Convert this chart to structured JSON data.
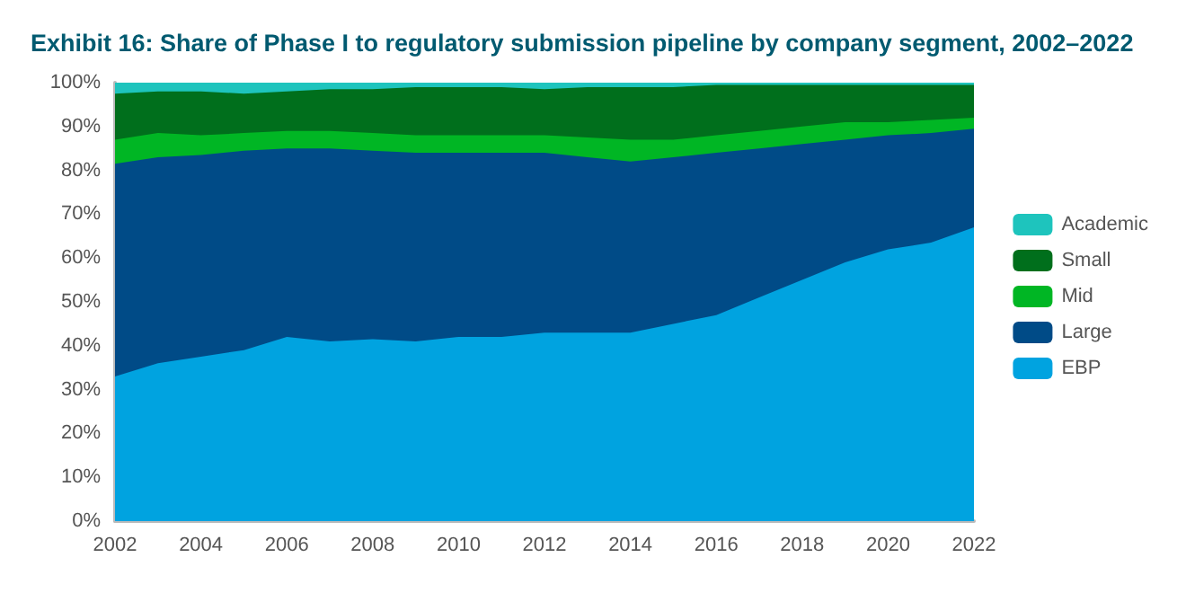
{
  "chart_data": {
    "type": "area",
    "stacked": true,
    "title": "Exhibit 16: Share of Phase I to regulatory submission pipeline by company segment, 2002–2022",
    "x": [
      2002,
      2003,
      2004,
      2005,
      2006,
      2007,
      2008,
      2009,
      2010,
      2011,
      2012,
      2013,
      2014,
      2015,
      2016,
      2017,
      2018,
      2019,
      2020,
      2021,
      2022
    ],
    "series": [
      {
        "name": "EBP",
        "color": "#00a3e0",
        "values": [
          33,
          36,
          37.5,
          39,
          42,
          41,
          41.5,
          41,
          42,
          42,
          43,
          43,
          43,
          45,
          47,
          51,
          55,
          59,
          62,
          63.5,
          67
        ]
      },
      {
        "name": "Large",
        "color": "#004b87",
        "values": [
          48.5,
          47,
          46,
          45.5,
          43,
          44,
          43,
          43,
          42,
          42,
          41,
          40,
          39,
          38,
          37,
          34,
          31,
          28,
          26,
          25,
          22.5
        ]
      },
      {
        "name": "Mid",
        "color": "#00b624",
        "values": [
          5.5,
          5.5,
          4.5,
          4,
          4,
          4,
          4,
          4,
          4,
          4,
          4,
          4.5,
          5,
          4,
          4,
          4,
          4,
          4,
          3,
          3,
          2.5
        ]
      },
      {
        "name": "Small",
        "color": "#006f1c",
        "values": [
          10.5,
          9.5,
          10,
          9,
          9,
          9.5,
          10,
          11,
          11,
          11,
          10.5,
          11.5,
          12,
          12,
          11.5,
          10.5,
          9.5,
          8.5,
          8.5,
          8,
          7.5
        ]
      },
      {
        "name": "Academic",
        "color": "#1ec4bd",
        "values": [
          2.5,
          2,
          2,
          2.5,
          2,
          1.5,
          1.5,
          1,
          1,
          1,
          1.5,
          1,
          1,
          1,
          0.5,
          0.5,
          0.5,
          0.5,
          0.5,
          0.5,
          0.5
        ]
      }
    ],
    "xlim": [
      2002,
      2022
    ],
    "xticks": [
      2002,
      2004,
      2006,
      2008,
      2010,
      2012,
      2014,
      2016,
      2018,
      2020,
      2022
    ],
    "ylim": [
      0,
      100
    ],
    "yticks": [
      {
        "value": 0,
        "label": "0%"
      },
      {
        "value": 10,
        "label": "10%"
      },
      {
        "value": 20,
        "label": "20%"
      },
      {
        "value": 30,
        "label": "30%"
      },
      {
        "value": 40,
        "label": "40%"
      },
      {
        "value": 50,
        "label": "50%"
      },
      {
        "value": 60,
        "label": "60%"
      },
      {
        "value": 70,
        "label": "70%"
      },
      {
        "value": 80,
        "label": "80%"
      },
      {
        "value": 90,
        "label": "90%"
      },
      {
        "value": 100,
        "label": "100%"
      }
    ],
    "grid": false,
    "legend": "right"
  }
}
